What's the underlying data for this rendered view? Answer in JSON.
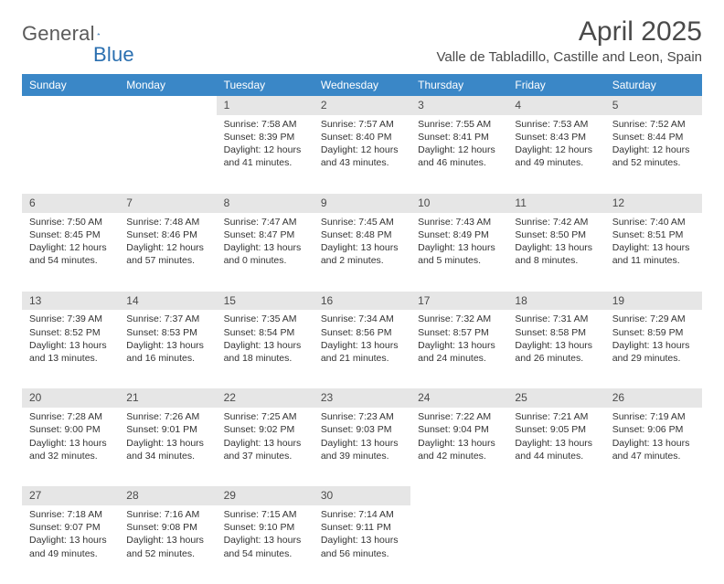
{
  "brand": {
    "name1": "General",
    "name2": "Blue"
  },
  "title": "April 2025",
  "location": "Valle de Tabladillo, Castille and Leon, Spain",
  "weekdays": [
    "Sunday",
    "Monday",
    "Tuesday",
    "Wednesday",
    "Thursday",
    "Friday",
    "Saturday"
  ],
  "colors": {
    "header_bg": "#3a87c7",
    "header_text": "#ffffff",
    "daynum_bg": "#e6e6e6",
    "text": "#333333",
    "logo_gray": "#5a5a5a",
    "logo_blue": "#2a6fb0"
  },
  "weeks": [
    [
      null,
      null,
      {
        "n": "1",
        "sr": "Sunrise: 7:58 AM",
        "ss": "Sunset: 8:39 PM",
        "dl": "Daylight: 12 hours and 41 minutes."
      },
      {
        "n": "2",
        "sr": "Sunrise: 7:57 AM",
        "ss": "Sunset: 8:40 PM",
        "dl": "Daylight: 12 hours and 43 minutes."
      },
      {
        "n": "3",
        "sr": "Sunrise: 7:55 AM",
        "ss": "Sunset: 8:41 PM",
        "dl": "Daylight: 12 hours and 46 minutes."
      },
      {
        "n": "4",
        "sr": "Sunrise: 7:53 AM",
        "ss": "Sunset: 8:43 PM",
        "dl": "Daylight: 12 hours and 49 minutes."
      },
      {
        "n": "5",
        "sr": "Sunrise: 7:52 AM",
        "ss": "Sunset: 8:44 PM",
        "dl": "Daylight: 12 hours and 52 minutes."
      }
    ],
    [
      {
        "n": "6",
        "sr": "Sunrise: 7:50 AM",
        "ss": "Sunset: 8:45 PM",
        "dl": "Daylight: 12 hours and 54 minutes."
      },
      {
        "n": "7",
        "sr": "Sunrise: 7:48 AM",
        "ss": "Sunset: 8:46 PM",
        "dl": "Daylight: 12 hours and 57 minutes."
      },
      {
        "n": "8",
        "sr": "Sunrise: 7:47 AM",
        "ss": "Sunset: 8:47 PM",
        "dl": "Daylight: 13 hours and 0 minutes."
      },
      {
        "n": "9",
        "sr": "Sunrise: 7:45 AM",
        "ss": "Sunset: 8:48 PM",
        "dl": "Daylight: 13 hours and 2 minutes."
      },
      {
        "n": "10",
        "sr": "Sunrise: 7:43 AM",
        "ss": "Sunset: 8:49 PM",
        "dl": "Daylight: 13 hours and 5 minutes."
      },
      {
        "n": "11",
        "sr": "Sunrise: 7:42 AM",
        "ss": "Sunset: 8:50 PM",
        "dl": "Daylight: 13 hours and 8 minutes."
      },
      {
        "n": "12",
        "sr": "Sunrise: 7:40 AM",
        "ss": "Sunset: 8:51 PM",
        "dl": "Daylight: 13 hours and 11 minutes."
      }
    ],
    [
      {
        "n": "13",
        "sr": "Sunrise: 7:39 AM",
        "ss": "Sunset: 8:52 PM",
        "dl": "Daylight: 13 hours and 13 minutes."
      },
      {
        "n": "14",
        "sr": "Sunrise: 7:37 AM",
        "ss": "Sunset: 8:53 PM",
        "dl": "Daylight: 13 hours and 16 minutes."
      },
      {
        "n": "15",
        "sr": "Sunrise: 7:35 AM",
        "ss": "Sunset: 8:54 PM",
        "dl": "Daylight: 13 hours and 18 minutes."
      },
      {
        "n": "16",
        "sr": "Sunrise: 7:34 AM",
        "ss": "Sunset: 8:56 PM",
        "dl": "Daylight: 13 hours and 21 minutes."
      },
      {
        "n": "17",
        "sr": "Sunrise: 7:32 AM",
        "ss": "Sunset: 8:57 PM",
        "dl": "Daylight: 13 hours and 24 minutes."
      },
      {
        "n": "18",
        "sr": "Sunrise: 7:31 AM",
        "ss": "Sunset: 8:58 PM",
        "dl": "Daylight: 13 hours and 26 minutes."
      },
      {
        "n": "19",
        "sr": "Sunrise: 7:29 AM",
        "ss": "Sunset: 8:59 PM",
        "dl": "Daylight: 13 hours and 29 minutes."
      }
    ],
    [
      {
        "n": "20",
        "sr": "Sunrise: 7:28 AM",
        "ss": "Sunset: 9:00 PM",
        "dl": "Daylight: 13 hours and 32 minutes."
      },
      {
        "n": "21",
        "sr": "Sunrise: 7:26 AM",
        "ss": "Sunset: 9:01 PM",
        "dl": "Daylight: 13 hours and 34 minutes."
      },
      {
        "n": "22",
        "sr": "Sunrise: 7:25 AM",
        "ss": "Sunset: 9:02 PM",
        "dl": "Daylight: 13 hours and 37 minutes."
      },
      {
        "n": "23",
        "sr": "Sunrise: 7:23 AM",
        "ss": "Sunset: 9:03 PM",
        "dl": "Daylight: 13 hours and 39 minutes."
      },
      {
        "n": "24",
        "sr": "Sunrise: 7:22 AM",
        "ss": "Sunset: 9:04 PM",
        "dl": "Daylight: 13 hours and 42 minutes."
      },
      {
        "n": "25",
        "sr": "Sunrise: 7:21 AM",
        "ss": "Sunset: 9:05 PM",
        "dl": "Daylight: 13 hours and 44 minutes."
      },
      {
        "n": "26",
        "sr": "Sunrise: 7:19 AM",
        "ss": "Sunset: 9:06 PM",
        "dl": "Daylight: 13 hours and 47 minutes."
      }
    ],
    [
      {
        "n": "27",
        "sr": "Sunrise: 7:18 AM",
        "ss": "Sunset: 9:07 PM",
        "dl": "Daylight: 13 hours and 49 minutes."
      },
      {
        "n": "28",
        "sr": "Sunrise: 7:16 AM",
        "ss": "Sunset: 9:08 PM",
        "dl": "Daylight: 13 hours and 52 minutes."
      },
      {
        "n": "29",
        "sr": "Sunrise: 7:15 AM",
        "ss": "Sunset: 9:10 PM",
        "dl": "Daylight: 13 hours and 54 minutes."
      },
      {
        "n": "30",
        "sr": "Sunrise: 7:14 AM",
        "ss": "Sunset: 9:11 PM",
        "dl": "Daylight: 13 hours and 56 minutes."
      },
      null,
      null,
      null
    ]
  ]
}
